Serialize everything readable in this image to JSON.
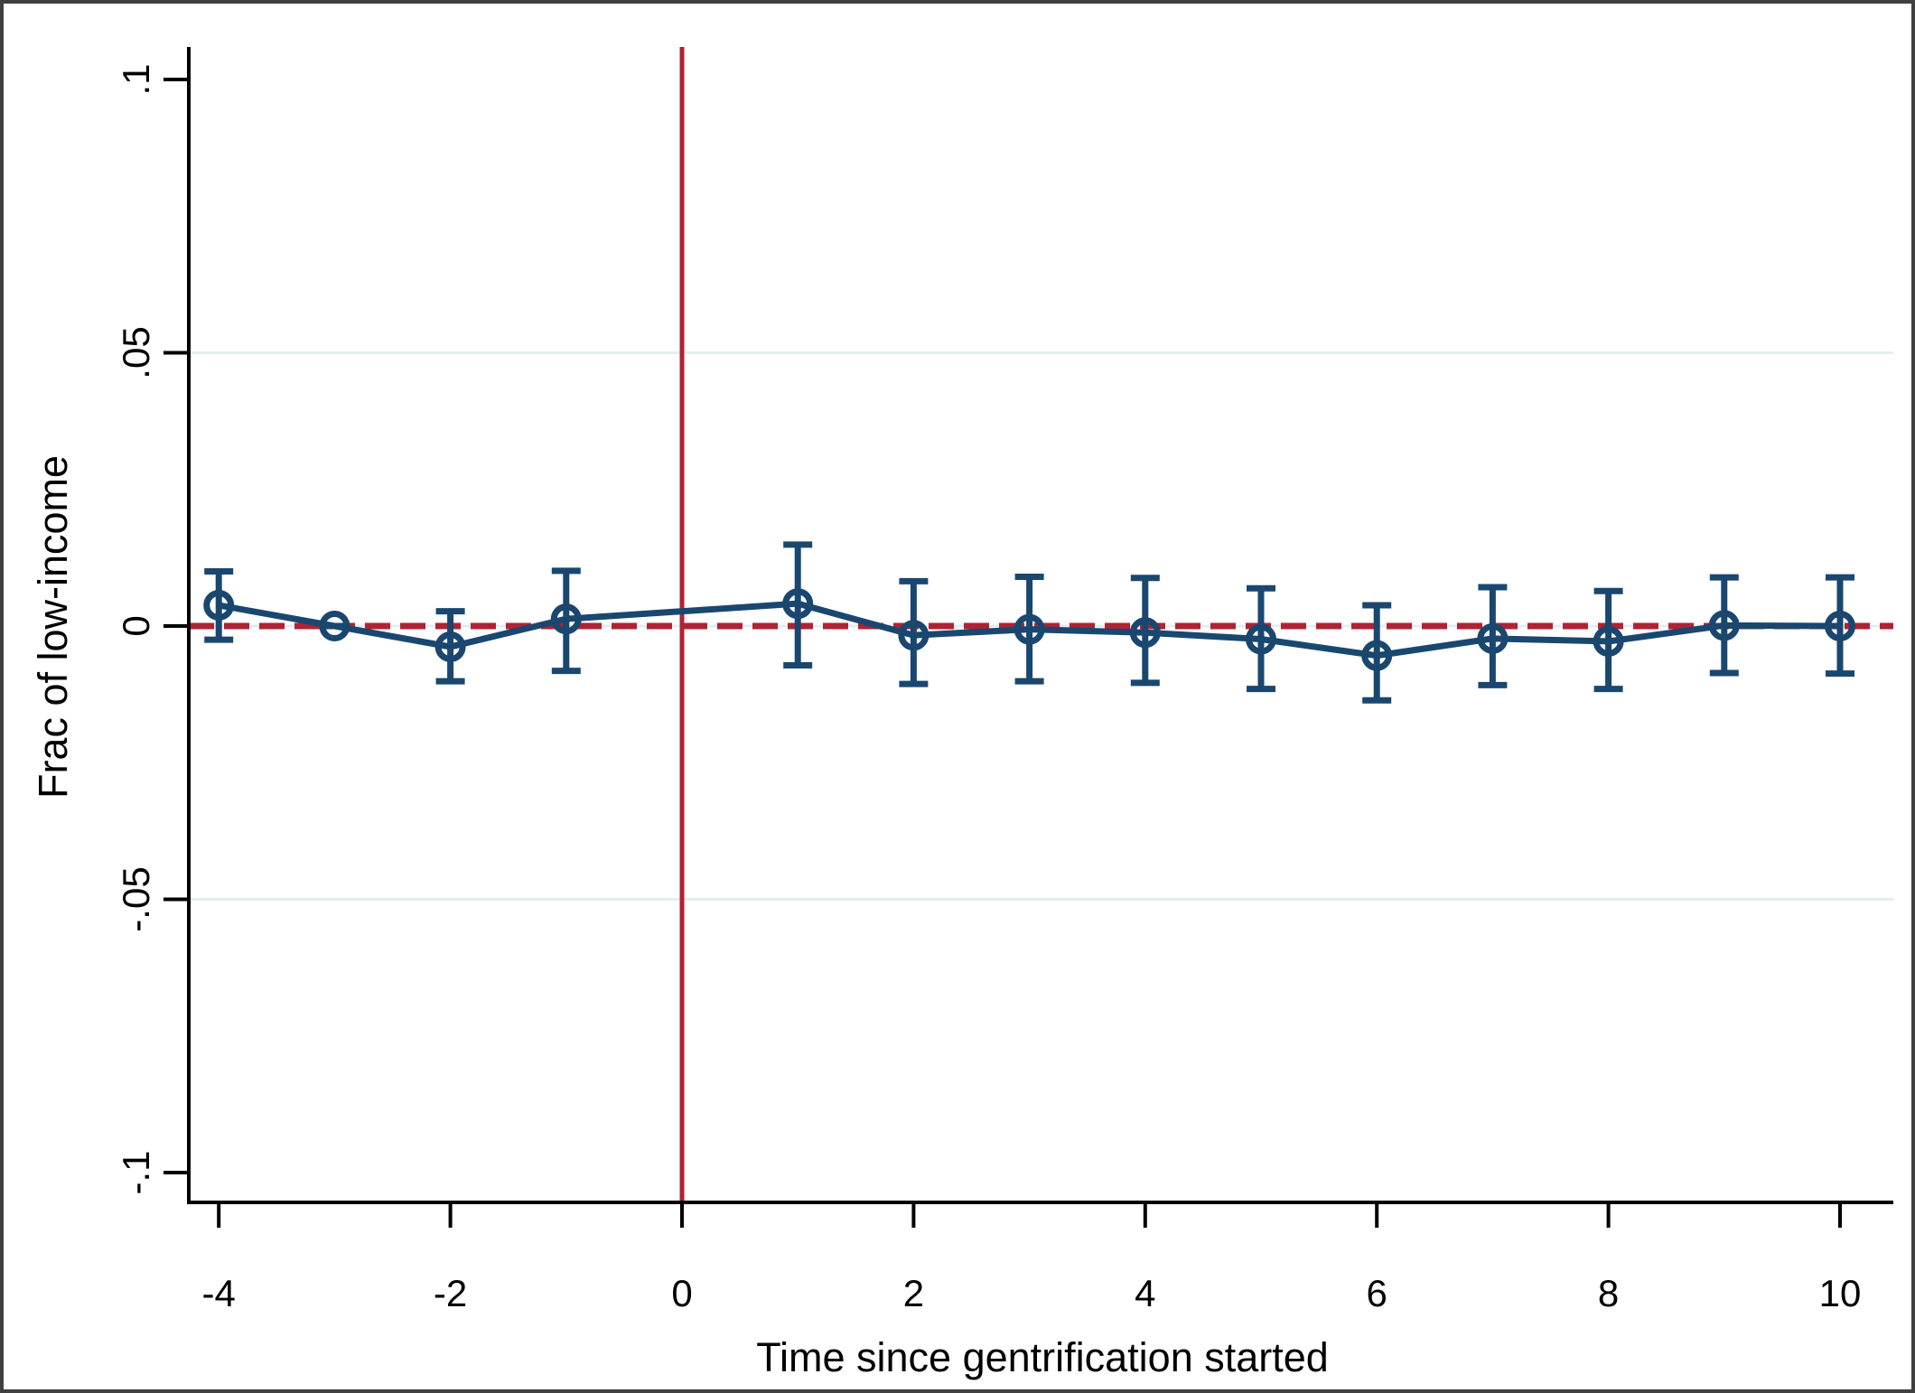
{
  "figure": {
    "background": "#ffffff",
    "border_color": "#404040",
    "title": ""
  },
  "chart_data": {
    "type": "line",
    "subtype": "event-study-coefficient-plot-with-error-bars",
    "title": "",
    "xlabel": "Time since gentrification started",
    "ylabel": "Frac of low-income",
    "xlim": [
      -4.26,
      10.45
    ],
    "ylim": [
      -0.1055,
      0.106
    ],
    "x_ticks": {
      "values": [
        -4,
        -2,
        0,
        2,
        4,
        6,
        8,
        10
      ],
      "labels": [
        "-4",
        "-2",
        "0",
        "2",
        "4",
        "6",
        "8",
        "10"
      ]
    },
    "y_ticks": {
      "values": [
        0.1,
        0.05,
        0,
        -0.05,
        -0.1
      ],
      "labels": [
        ".1",
        ".05",
        "0",
        "-.05",
        "-.1"
      ]
    },
    "grid": "horizontal-light",
    "gridlines_y": [
      0.05,
      0,
      -0.05
    ],
    "legend": "none",
    "reference_lines": {
      "vertical_x": 0,
      "vertical_style": "solid",
      "horizontal_y": 0,
      "horizontal_style": "dashed"
    },
    "series": [
      {
        "name": "estimate",
        "marker": "open-circle",
        "connected": true,
        "x": [
          -4,
          -3,
          -2,
          -1,
          1,
          2,
          3,
          4,
          5,
          6,
          7,
          8,
          9,
          10
        ],
        "y": [
          0.0038,
          0.0,
          -0.0038,
          0.0013,
          0.0041,
          -0.0017,
          -0.0006,
          -0.0012,
          -0.0024,
          -0.0054,
          -0.0023,
          -0.0028,
          0.0001,
          0.0
        ],
        "ci_low": [
          -0.0025,
          0.0,
          -0.0101,
          -0.0082,
          -0.0072,
          -0.0106,
          -0.0101,
          -0.0104,
          -0.0115,
          -0.0136,
          -0.0108,
          -0.0115,
          -0.0086,
          -0.0087
        ],
        "ci_high": [
          0.01,
          0.0,
          0.0027,
          0.0101,
          0.0149,
          0.0082,
          0.009,
          0.0088,
          0.0069,
          0.0038,
          0.0071,
          0.0064,
          0.0089,
          0.0089
        ]
      }
    ],
    "colors": {
      "series": "#1A476F",
      "reference": "#B12234",
      "gridline": "#E4EEF0",
      "axis": "#000000"
    }
  }
}
